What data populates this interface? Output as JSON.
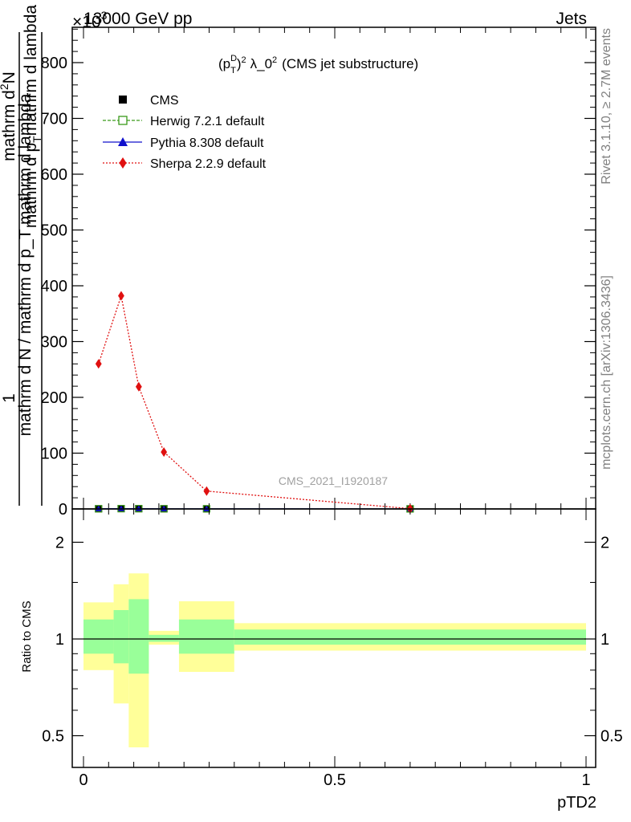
{
  "header": {
    "left": "13000 GeV pp",
    "right": "Jets",
    "exponent_label": "×10",
    "exponent_power": "3"
  },
  "side_labels": {
    "rivet": "Rivet 3.1.10, ≥ 2.7M events",
    "mcplots": "mcplots.cern.ch [arXiv:1306.3436]"
  },
  "watermark": "CMS_2021_I1920187",
  "colors": {
    "cms": "#000000",
    "herwig": "#3a9a1a",
    "pythia": "#1010cc",
    "sherpa": "#e01010",
    "band_outer": "#ffff99",
    "band_inner": "#99ff99"
  },
  "chart_data": [
    {
      "type": "line",
      "title": "(p_T^D)^2 λ_0^2 (CMS jet substructure)",
      "title_parts": {
        "a": "(p",
        "b": "D",
        "c": "T",
        "d": "2",
        "e": "λ_0",
        "f": "2",
        "g": "(CMS jet substructure)"
      },
      "ylabel": {
        "numerator": "1",
        "denominator": "mathrm d N / mathrm d p_T mathrm d lambda",
        "line1": "mathrm d",
        "line1_sup": "2",
        "line1_end": "N",
        "line2": "mathrm d p",
        "line2_sub": "T",
        "line2_end": "mathrm d lambda"
      },
      "x_range": [
        0,
        1
      ],
      "ylim": [
        0,
        860
      ],
      "y_multiplier": 1000,
      "yticks": [
        0,
        100,
        200,
        300,
        400,
        500,
        600,
        700,
        800
      ],
      "grid": false,
      "legend_position": "top-left",
      "series": [
        {
          "name": "CMS",
          "marker": "square-filled",
          "x": [
            0.03,
            0.075,
            0.11,
            0.16,
            0.245,
            0.65
          ],
          "values": [
            0.3,
            0.6,
            0.5,
            0.3,
            0.2,
            0.1
          ]
        },
        {
          "name": "Herwig 7.2.1 default",
          "marker": "square-open",
          "x": [
            0.03,
            0.075,
            0.11,
            0.16,
            0.245,
            0.65
          ],
          "values": [
            0.3,
            0.6,
            0.5,
            0.3,
            0.2,
            0.1
          ]
        },
        {
          "name": "Pythia 8.308 default",
          "marker": "triangle",
          "x": [
            0.03,
            0.075,
            0.11,
            0.16,
            0.245,
            0.65
          ],
          "values": [
            0.3,
            0.6,
            0.5,
            0.3,
            0.2,
            0.1
          ]
        },
        {
          "name": "Sherpa 2.2.9 default",
          "marker": "diamond",
          "x": [
            0.03,
            0.075,
            0.11,
            0.16,
            0.245,
            0.65
          ],
          "values": [
            260,
            382,
            219,
            102,
            32,
            0.5
          ]
        }
      ]
    },
    {
      "type": "area",
      "ylabel": "Ratio to CMS",
      "xlabel": "pTD2",
      "x_range": [
        0,
        1
      ],
      "ylim": [
        0.4,
        2.3
      ],
      "log_y": true,
      "yticks": [
        0.5,
        1,
        2
      ],
      "xticks": [
        0,
        0.5,
        1
      ],
      "grid": false,
      "reference_line": 1,
      "bins": [
        {
          "lo": 0.0,
          "hi": 0.06,
          "outer": [
            0.8,
            1.3
          ],
          "inner": [
            0.9,
            1.15
          ]
        },
        {
          "lo": 0.06,
          "hi": 0.09,
          "outer": [
            0.63,
            1.48
          ],
          "inner": [
            0.84,
            1.23
          ]
        },
        {
          "lo": 0.09,
          "hi": 0.13,
          "outer": [
            0.46,
            1.6
          ],
          "inner": [
            0.78,
            1.33
          ]
        },
        {
          "lo": 0.13,
          "hi": 0.19,
          "outer": [
            0.96,
            1.06
          ],
          "inner": [
            0.98,
            1.03
          ]
        },
        {
          "lo": 0.19,
          "hi": 0.3,
          "outer": [
            0.79,
            1.31
          ],
          "inner": [
            0.9,
            1.15
          ]
        },
        {
          "lo": 0.3,
          "hi": 1.0,
          "outer": [
            0.92,
            1.12
          ],
          "inner": [
            0.96,
            1.07
          ]
        }
      ]
    }
  ]
}
